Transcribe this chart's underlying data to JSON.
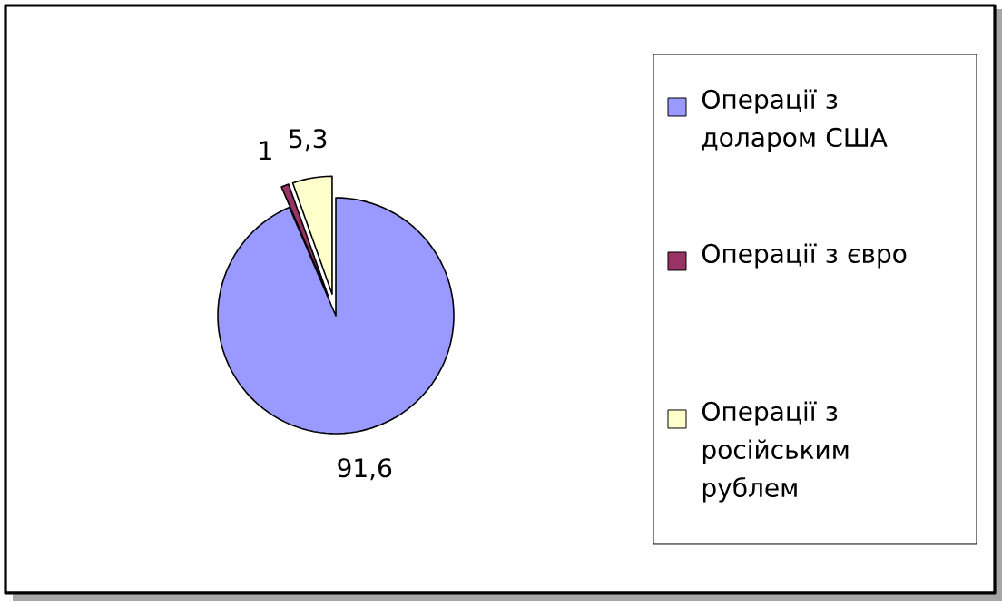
{
  "chart_data": {
    "type": "pie",
    "categories": [
      "Операції з доларом США",
      "Операції з євро",
      "Операції з російським рублем"
    ],
    "values": [
      91.6,
      1,
      5.3
    ],
    "value_labels": [
      "91,6",
      "1",
      "5,3"
    ],
    "colors": [
      "#9999ff",
      "#993366",
      "#ffffcc"
    ],
    "legend": "right"
  }
}
